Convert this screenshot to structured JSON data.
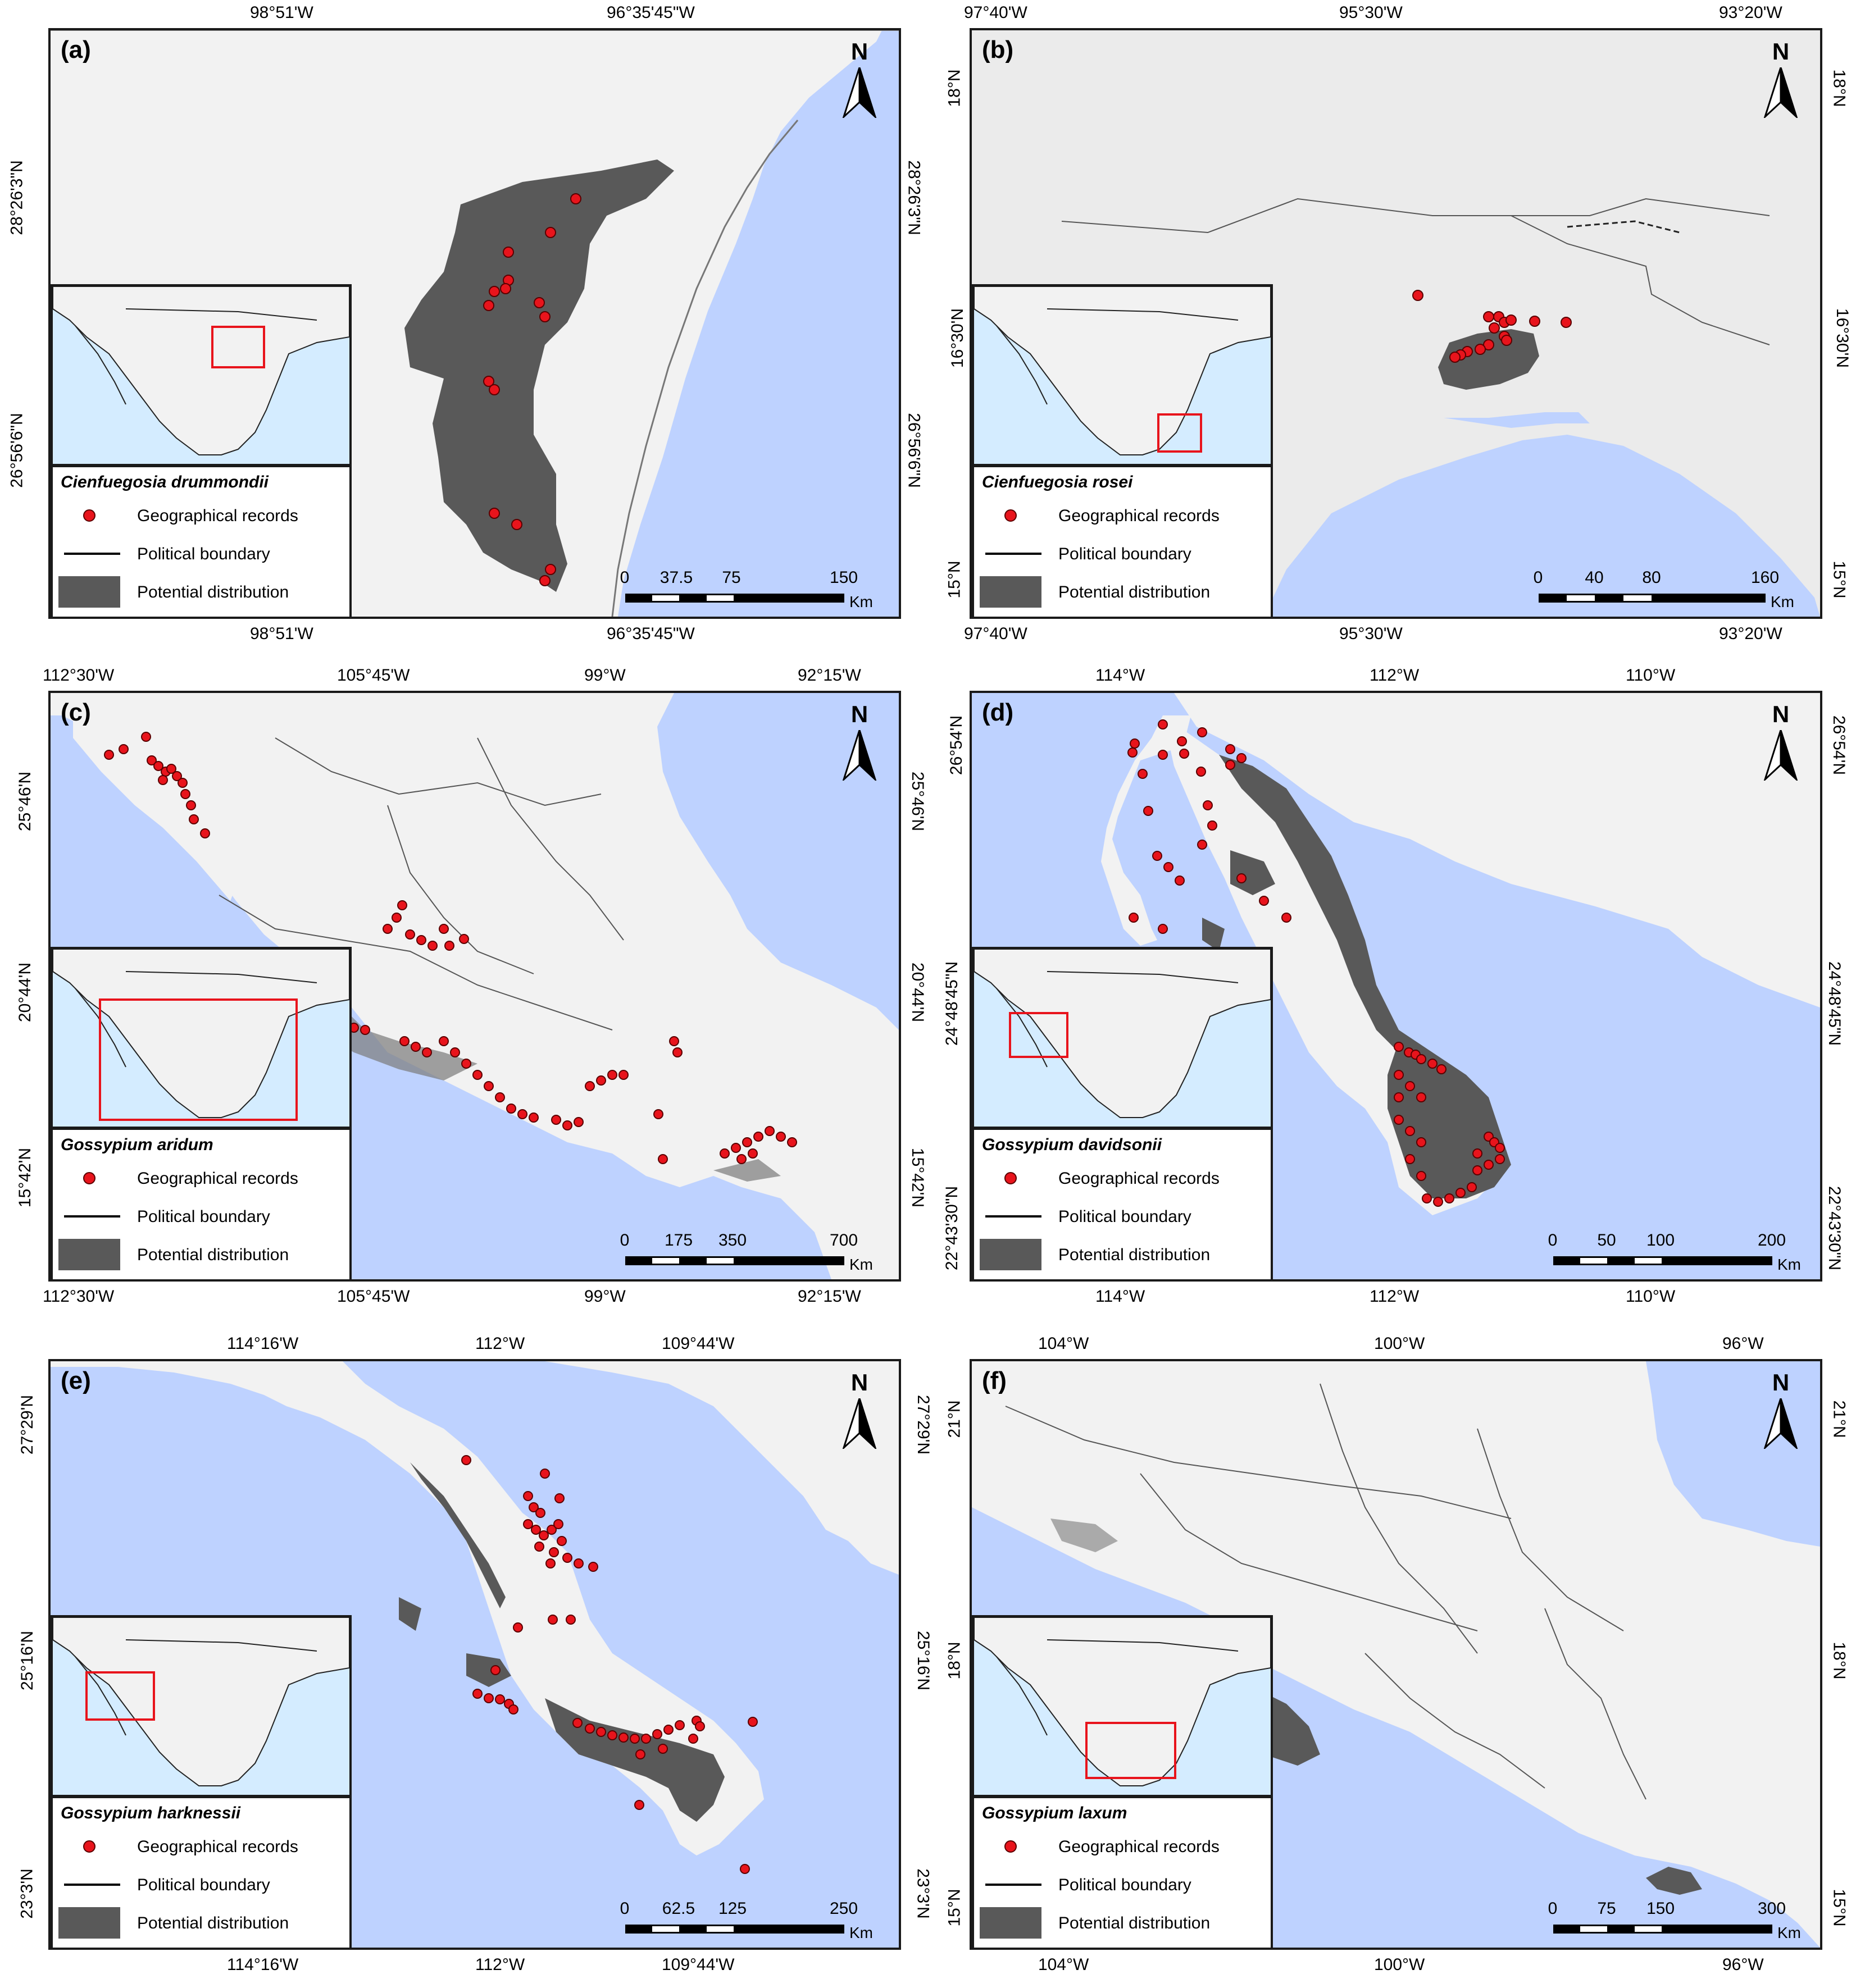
{
  "legend_labels": {
    "records": "Geographical records",
    "boundary": "Political boundary",
    "distribution": "Potential distribution"
  },
  "colors": {
    "sea": "#bed2ff",
    "land": "#f2f2f2",
    "distribution": "#595959",
    "record": "#e8141c",
    "inset_sea": "#d4ecff",
    "inset_box": "#e8141c"
  },
  "north_label": "N",
  "scale_unit": "Km",
  "panels": [
    {
      "letter": "(a)",
      "species": "Cienfuegosia drummondii",
      "top_x": [
        "98°51'W",
        "96°35'45\"W"
      ],
      "bottom_x": [
        "98°51'W",
        "96°35'45\"W"
      ],
      "left_y": [
        "28°26'3\"N",
        "26°56'6\"N"
      ],
      "right_y": [
        "28°26'3\"N",
        "26°56'6\"N"
      ],
      "scale": [
        "0",
        "37.5",
        "75",
        "150"
      ]
    },
    {
      "letter": "(b)",
      "species": "Cienfuegosia rosei",
      "top_x": [
        "97°40'W",
        "95°30'W",
        "93°20'W"
      ],
      "bottom_x": [
        "97°40'W",
        "95°30'W",
        "93°20'W"
      ],
      "left_y": [
        "18°N",
        "16°30'N",
        "15°N"
      ],
      "right_y": [
        "18°N",
        "16°30'N",
        "15°N"
      ],
      "scale": [
        "0",
        "40",
        "80",
        "160"
      ]
    },
    {
      "letter": "(c)",
      "species": "Gossypium aridum",
      "top_x": [
        "112°30'W",
        "105°45'W",
        "99°W",
        "92°15'W"
      ],
      "bottom_x": [
        "112°30'W",
        "105°45'W",
        "99°W",
        "92°15'W"
      ],
      "left_y": [
        "25°46'N",
        "20°44'N",
        "15°42'N"
      ],
      "right_y": [
        "25°46'N",
        "20°44'N",
        "15°42'N"
      ],
      "scale": [
        "0",
        "175",
        "350",
        "700"
      ]
    },
    {
      "letter": "(d)",
      "species": "Gossypium davidsonii",
      "top_x": [
        "114°W",
        "112°W",
        "110°W"
      ],
      "bottom_x": [
        "114°W",
        "112°W",
        "110°W"
      ],
      "left_y": [
        "26°54'N",
        "24°48'45\"N",
        "22°43'30\"N"
      ],
      "right_y": [
        "26°54'N",
        "24°48'45\"N",
        "22°43'30\"N"
      ],
      "scale": [
        "0",
        "50",
        "100",
        "200"
      ]
    },
    {
      "letter": "(e)",
      "species": "Gossypium harknessii",
      "top_x": [
        "114°16'W",
        "112°W",
        "109°44'W"
      ],
      "bottom_x": [
        "114°16'W",
        "112°W",
        "109°44'W"
      ],
      "left_y": [
        "27°29'N",
        "25°16'N",
        "23°3'N"
      ],
      "right_y": [
        "27°29'N",
        "25°16'N",
        "23°3'N"
      ],
      "scale": [
        "0",
        "62.5",
        "125",
        "250"
      ]
    },
    {
      "letter": "(f)",
      "species": "Gossypium laxum",
      "top_x": [
        "104°W",
        "100°W",
        "96°W"
      ],
      "bottom_x": [
        "104°W",
        "100°W",
        "96°W"
      ],
      "left_y": [
        "21°N",
        "18°N",
        "15°N"
      ],
      "right_y": [
        "21°N",
        "18°N",
        "15°N"
      ],
      "scale": [
        "0",
        "75",
        "150",
        "300"
      ]
    }
  ]
}
